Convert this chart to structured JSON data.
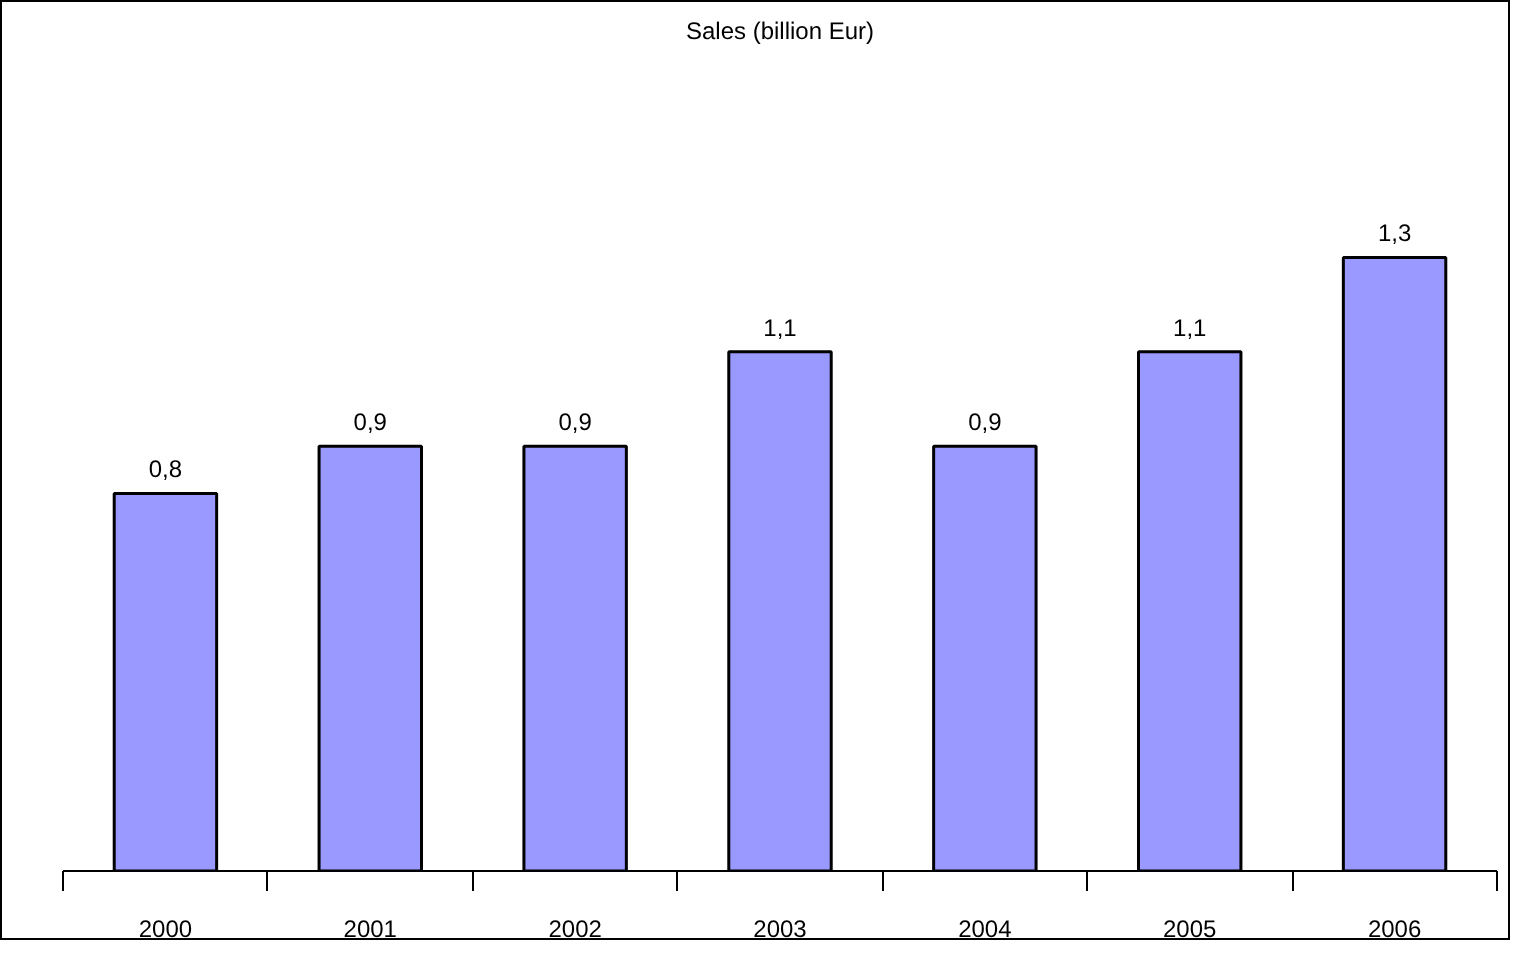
{
  "chart_data": {
    "type": "bar",
    "title": "Sales (billion Eur)",
    "categories": [
      "2000",
      "2001",
      "2002",
      "2003",
      "2004",
      "2005",
      "2006"
    ],
    "series": [
      {
        "color": "#9999ff",
        "values": [
          0.8,
          0.9,
          0.9,
          1.1,
          0.9,
          1.1,
          1.3
        ],
        "value_labels": [
          "0,8",
          "0,9",
          "0,9",
          "1,1",
          "0,9",
          "1,1",
          "1,3"
        ]
      }
    ],
    "grid": false
  }
}
